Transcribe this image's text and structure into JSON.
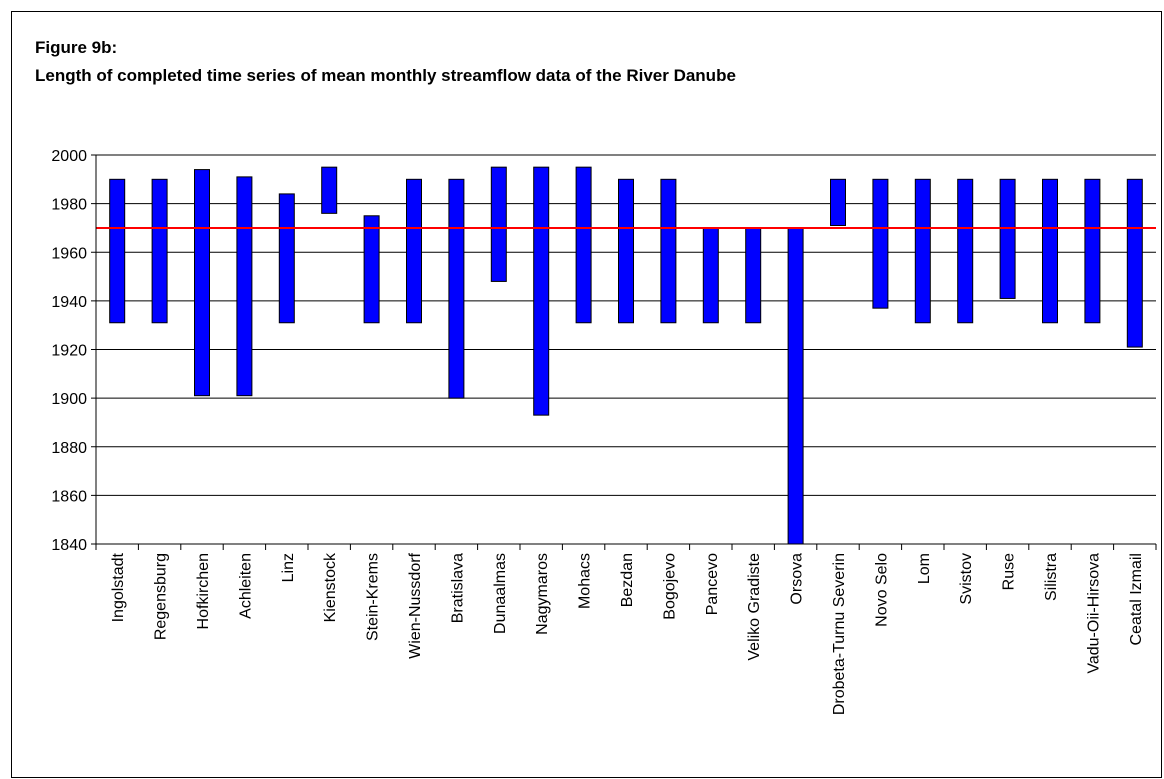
{
  "header": {
    "figure_label": "Figure 9b:",
    "title": "Length of completed time series of mean monthly streamflow data of the River Danube"
  },
  "chart_data": {
    "type": "bar",
    "title": "Length of completed time series of mean monthly streamflow data of the River Danube",
    "xlabel": "",
    "ylabel": "",
    "ylim": [
      1840,
      2000
    ],
    "yticks": [
      1840,
      1860,
      1880,
      1900,
      1920,
      1940,
      1960,
      1980,
      2000
    ],
    "grid": true,
    "bar_color": "#0000ff",
    "reference_line": {
      "value": 1970,
      "color": "#ff0000"
    },
    "categories": [
      "Ingolstadt",
      "Regensburg",
      "Hofkirchen",
      "Achleiten",
      "Linz",
      "Kienstock",
      "Stein-Krems",
      "Wien-Nussdorf",
      "Bratislava",
      "Dunaalmas",
      "Nagymaros",
      "Mohacs",
      "Bezdan",
      "Bogojevo",
      "Pancevo",
      "Veliko Gradiste",
      "Orsova",
      "Drobeta-Turnu Severin",
      "Novo Selo",
      "Lom",
      "Svistov",
      "Ruse",
      "Silistra",
      "Vadu-Oii-Hirsova",
      "Ceatal Izmail"
    ],
    "start": [
      1931,
      1931,
      1901,
      1901,
      1931,
      1976,
      1931,
      1931,
      1900,
      1948,
      1893,
      1931,
      1931,
      1931,
      1931,
      1931,
      1840,
      1971,
      1937,
      1931,
      1931,
      1941,
      1931,
      1931,
      1921
    ],
    "end": [
      1990,
      1990,
      1994,
      1991,
      1984,
      1995,
      1975,
      1990,
      1990,
      1995,
      1995,
      1995,
      1990,
      1990,
      1970,
      1970,
      1970,
      1990,
      1990,
      1990,
      1990,
      1990,
      1990,
      1990,
      1990
    ]
  }
}
